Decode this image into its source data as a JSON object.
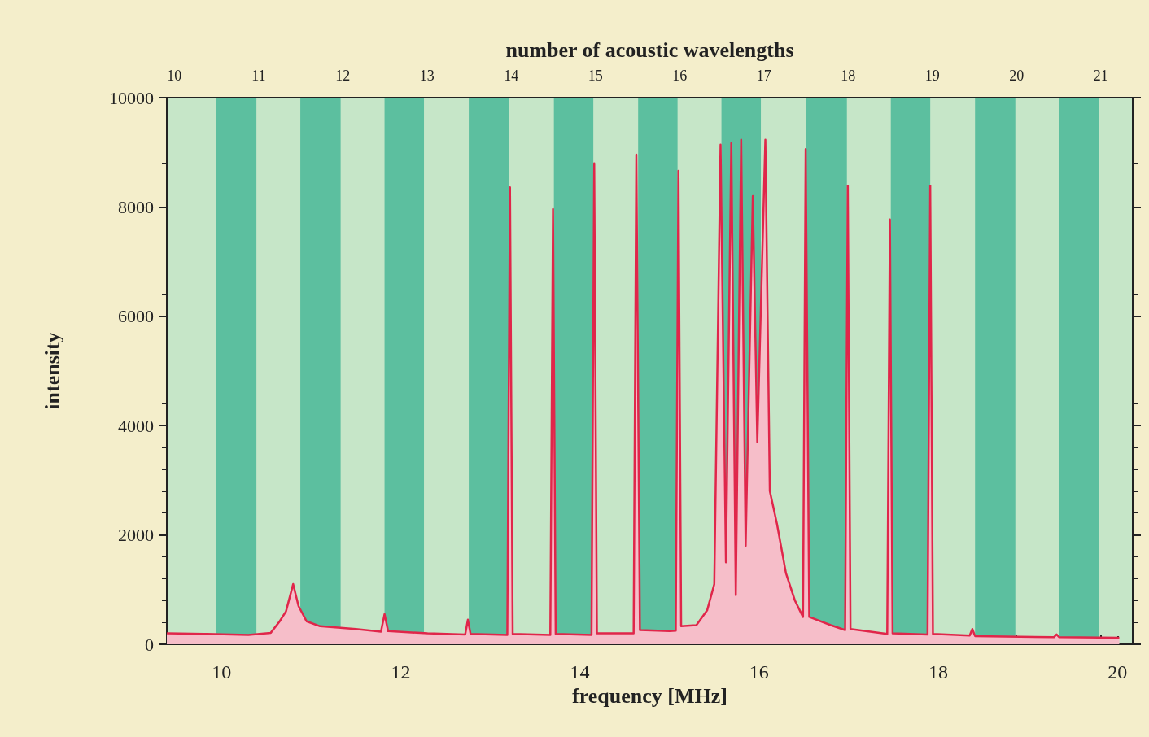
{
  "chart_data": {
    "type": "area",
    "xlabel": "frequency [MHz]",
    "ylabel": "intensity",
    "x2label": "number of acoustic wavelengths",
    "xlim": [
      9.39,
      20.17
    ],
    "xticks": [
      10,
      12,
      14,
      16,
      18,
      20
    ],
    "x2lim": [
      9.91,
      21.38
    ],
    "x2ticks": [
      10,
      11,
      12,
      13,
      14,
      15,
      16,
      17,
      18,
      19,
      20,
      21
    ],
    "ylim": [
      0,
      10000
    ],
    "yticks": [
      0,
      2000,
      4000,
      6000,
      8000,
      10000
    ],
    "grid": false,
    "marker": "none",
    "line_style": "solid",
    "bands": [
      {
        "axis": "x",
        "from": 9.94,
        "to": 10.39,
        "color": "#5cbf9f"
      },
      {
        "axis": "x",
        "from": 10.88,
        "to": 11.33,
        "color": "#5cbf9f"
      },
      {
        "axis": "x",
        "from": 11.82,
        "to": 12.26,
        "color": "#5cbf9f"
      },
      {
        "axis": "x",
        "from": 12.76,
        "to": 13.21,
        "color": "#5cbf9f"
      },
      {
        "axis": "x",
        "from": 13.71,
        "to": 14.15,
        "color": "#5cbf9f"
      },
      {
        "axis": "x",
        "from": 14.65,
        "to": 15.09,
        "color": "#5cbf9f"
      },
      {
        "axis": "x",
        "from": 15.58,
        "to": 16.02,
        "color": "#5cbf9f"
      },
      {
        "axis": "x",
        "from": 16.52,
        "to": 16.98,
        "color": "#5cbf9f"
      },
      {
        "axis": "x",
        "from": 17.47,
        "to": 17.91,
        "color": "#5cbf9f"
      },
      {
        "axis": "x",
        "from": 18.41,
        "to": 18.86,
        "color": "#5cbf9f"
      },
      {
        "axis": "x",
        "from": 19.35,
        "to": 19.79,
        "color": "#5cbf9f"
      }
    ],
    "x": [
      9.39,
      9.8,
      10.3,
      10.55,
      10.65,
      10.72,
      10.8,
      10.86,
      10.95,
      11.1,
      11.5,
      11.78,
      11.82,
      11.86,
      12.3,
      12.72,
      12.75,
      12.78,
      13.19,
      13.22,
      13.25,
      13.67,
      13.7,
      13.73,
      14.13,
      14.16,
      14.19,
      14.6,
      14.63,
      14.67,
      15.0,
      15.07,
      15.1,
      15.13,
      15.3,
      15.42,
      15.5,
      15.57,
      15.63,
      15.69,
      15.74,
      15.8,
      15.85,
      15.93,
      15.98,
      16.07,
      16.12,
      16.2,
      16.3,
      16.4,
      16.49,
      16.52,
      16.56,
      16.8,
      16.96,
      16.99,
      17.02,
      17.43,
      17.46,
      17.49,
      17.88,
      17.91,
      17.94,
      18.35,
      18.38,
      18.41,
      19.29,
      19.32,
      19.35,
      20.02
    ],
    "series": [
      {
        "color": "#e0264a",
        "values": [
          200,
          190,
          170,
          210,
          420,
          600,
          1100,
          700,
          420,
          330,
          280,
          230,
          550,
          240,
          200,
          180,
          450,
          190,
          170,
          8360,
          190,
          170,
          7960,
          190,
          170,
          8800,
          200,
          200,
          8960,
          260,
          240,
          250,
          8660,
          330,
          350,
          620,
          1100,
          9140,
          1500,
          9170,
          900,
          9230,
          1800,
          8200,
          3700,
          9230,
          2800,
          2200,
          1300,
          800,
          500,
          9060,
          500,
          350,
          260,
          8390,
          280,
          190,
          7770,
          200,
          180,
          8390,
          190,
          160,
          280,
          150,
          130,
          180,
          130,
          120
        ]
      }
    ]
  }
}
